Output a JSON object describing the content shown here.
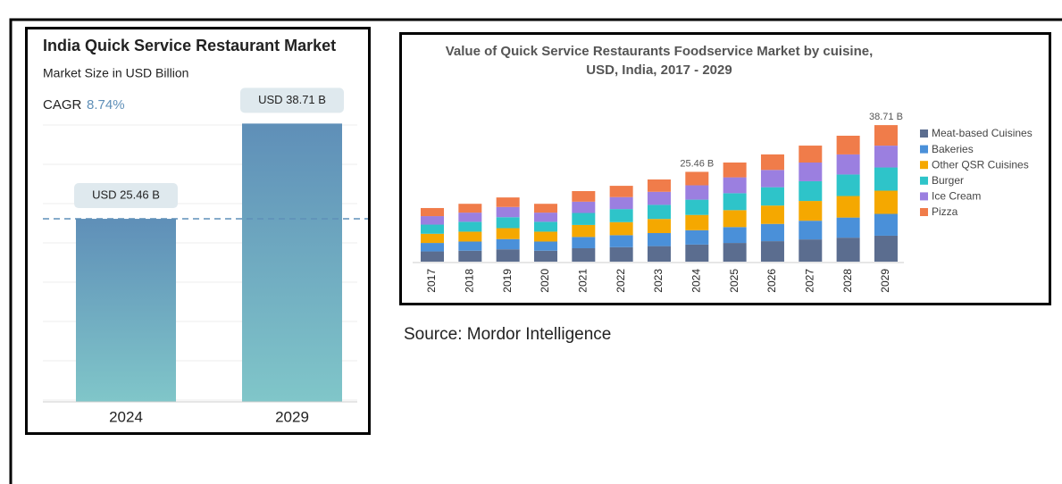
{
  "chart_data": [
    {
      "type": "bar",
      "title": "India Quick Service Restaurant Market",
      "subtitle": "Market Size in USD Billion",
      "cagr_label": "CAGR",
      "cagr_value": "8.74%",
      "categories": [
        "2024",
        "2029"
      ],
      "values": [
        25.46,
        38.71
      ],
      "value_labels": [
        "USD 25.46 B",
        "USD 38.71 B"
      ],
      "ylim": [
        0,
        40
      ],
      "colors": [
        "#5f8fb8",
        "#80c6c9"
      ],
      "reference_line": true
    },
    {
      "type": "stacked_bar",
      "title": [
        "Value of Quick Service Restaurants Foodservice Market by cuisine,",
        "USD, India, 2017 - 2029"
      ],
      "categories": [
        "2017",
        "2018",
        "2019",
        "2020",
        "2021",
        "2022",
        "2023",
        "2024",
        "2025",
        "2026",
        "2027",
        "2028",
        "2029"
      ],
      "ylim": [
        0,
        40
      ],
      "legend": "right",
      "series": [
        {
          "name": "Meat-based Cuisines",
          "color": "#5b6d8f",
          "values": [
            2.9,
            3.1,
            3.5,
            3.1,
            3.8,
            4.1,
            4.4,
            4.84,
            5.3,
            5.8,
            6.3,
            6.8,
            7.35
          ]
        },
        {
          "name": "Bakeries",
          "color": "#4a90d9",
          "values": [
            2.4,
            2.6,
            2.9,
            2.6,
            3.2,
            3.4,
            3.7,
            4.07,
            4.5,
            4.9,
            5.3,
            5.7,
            6.19
          ]
        },
        {
          "name": "Other QSR Cuisines",
          "color": "#f5a800",
          "values": [
            2.6,
            2.8,
            3.1,
            2.8,
            3.4,
            3.7,
            4.0,
            4.33,
            4.8,
            5.2,
            5.6,
            6.1,
            6.58
          ]
        },
        {
          "name": "Burger",
          "color": "#2ec4c9",
          "values": [
            2.6,
            2.8,
            3.1,
            2.8,
            3.4,
            3.7,
            4.0,
            4.33,
            4.8,
            5.2,
            5.6,
            6.1,
            6.58
          ]
        },
        {
          "name": "Ice Cream",
          "color": "#9b7fe0",
          "values": [
            2.4,
            2.6,
            2.9,
            2.6,
            3.2,
            3.4,
            3.7,
            4.07,
            4.5,
            4.9,
            5.3,
            5.7,
            6.19
          ]
        },
        {
          "name": "Pizza",
          "color": "#f07c4a",
          "values": [
            2.3,
            2.5,
            2.7,
            2.5,
            3.0,
            3.2,
            3.5,
            3.82,
            4.2,
            4.4,
            4.8,
            5.3,
            5.82
          ]
        }
      ],
      "annotations": [
        {
          "x": "2024",
          "label": "25.46 B"
        },
        {
          "x": "2029",
          "label": "38.71 B"
        }
      ]
    }
  ],
  "source": "Source: Mordor Intelligence"
}
